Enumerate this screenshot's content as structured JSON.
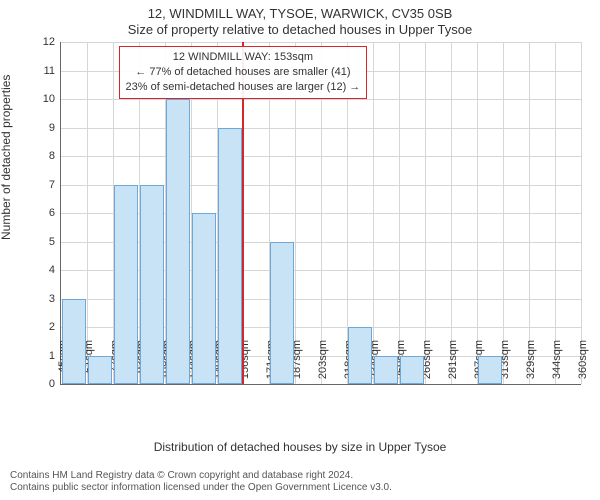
{
  "title_line1": "12, WINDMILL WAY, TYSOE, WARWICK, CV35 0SB",
  "title_line2": "Size of property relative to detached houses in Upper Tysoe",
  "ylabel": "Number of detached properties",
  "xlabel": "Distribution of detached houses by size in Upper Tysoe",
  "attribution_line1": "Contains HM Land Registry data © Crown copyright and database right 2024.",
  "attribution_line2": "Contains public sector information licensed under the Open Government Licence v3.0.",
  "chart": {
    "type": "histogram",
    "background_color": "#ffffff",
    "grid_color": "#d6d6d6",
    "axis_color": "#666666",
    "bar_fill": "#c9e3f6",
    "bar_stroke": "#6fa8d6",
    "marker_color": "#d62728",
    "annotation_border": "#d62728",
    "annotation_text_color": "#333333",
    "font_size_title": 13,
    "font_size_label": 12,
    "font_size_tick": 11,
    "y": {
      "min": 0,
      "max": 12,
      "step": 1
    },
    "x_ticks": [
      "45sqm",
      "61sqm",
      "77sqm",
      "93sqm",
      "108sqm",
      "124sqm",
      "140sqm",
      "156sqm",
      "171sqm",
      "187sqm",
      "203sqm",
      "218sqm",
      "234sqm",
      "250sqm",
      "266sqm",
      "281sqm",
      "297sqm",
      "313sqm",
      "329sqm",
      "344sqm",
      "360sqm"
    ],
    "bar_values": [
      3,
      1,
      7,
      7,
      10,
      6,
      9,
      0,
      5,
      0,
      0,
      2,
      1,
      1,
      0,
      0,
      1,
      0,
      0,
      0
    ],
    "bar_width_ratio": 0.96,
    "marker_bin_index": 7,
    "marker_position_in_bin": 0.0,
    "annotation": {
      "line1": "12 WINDMILL WAY: 153sqm",
      "line2": "← 77% of detached houses are smaller (41)",
      "line3": "23% of semi-detached houses are larger (12) →",
      "center_bin_index": 7
    }
  }
}
